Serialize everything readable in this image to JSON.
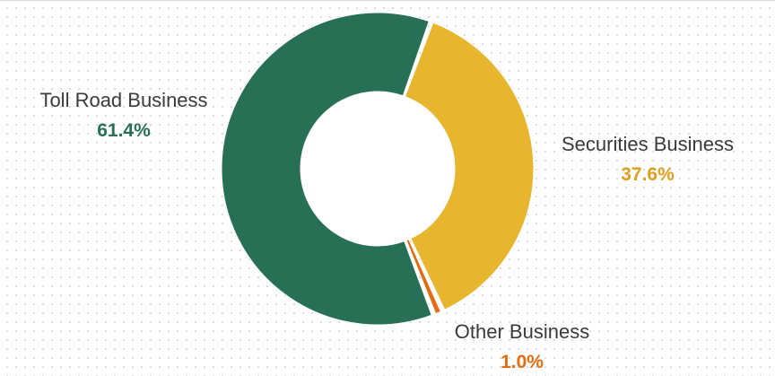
{
  "chart_data": {
    "type": "pie",
    "variant": "donut",
    "title": "",
    "slices": [
      {
        "label": "Securities Business",
        "value": 37.6,
        "value_label": "37.6%",
        "color": "#e8b62e",
        "label_color": "#e09f1f"
      },
      {
        "label": "Other Business",
        "value": 1.0,
        "value_label": "1.0%",
        "color": "#e56b10",
        "label_color": "#e56b10"
      },
      {
        "label": "Toll Road Business",
        "value": 61.4,
        "value_label": "61.4%",
        "color": "#277055",
        "label_color": "#277055"
      }
    ],
    "legend": "none",
    "grid": false
  }
}
